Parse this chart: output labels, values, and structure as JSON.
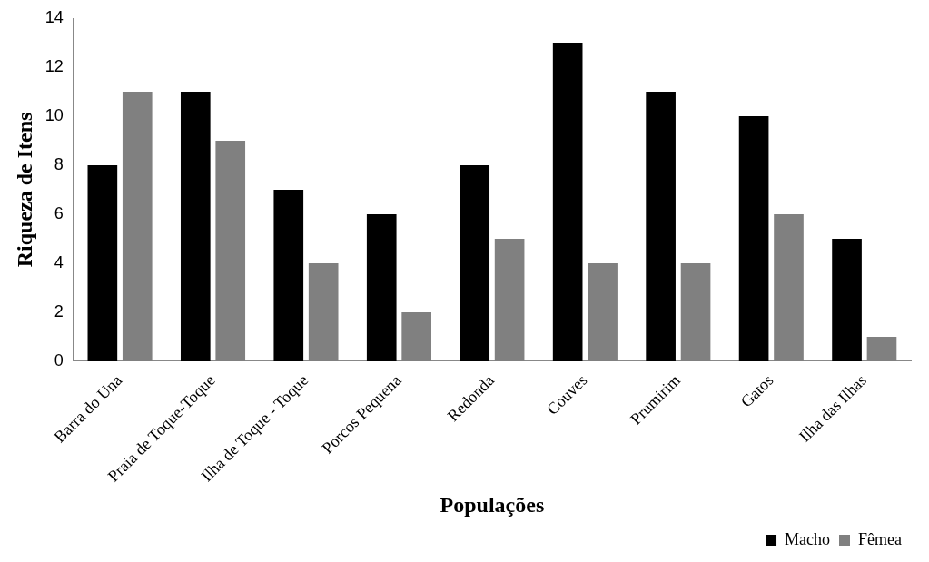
{
  "chart_data": {
    "type": "bar",
    "xlabel": "Populações",
    "ylabel": "Riqueza de Itens",
    "categories": [
      "Barra do Una",
      "Praia de Toque-Toque",
      "Ilha de Toque - Toque",
      "Porcos Pequena",
      "Redonda",
      "Couves",
      "Prumirim",
      "Gatos",
      "Ilha das Ilhas"
    ],
    "series": [
      {
        "name": "Macho",
        "color": "#000000",
        "values": [
          8,
          11,
          7,
          6,
          8,
          13,
          11,
          10,
          5
        ]
      },
      {
        "name": "Fêmea",
        "color": "#808080",
        "values": [
          11,
          9,
          4,
          2,
          5,
          4,
          4,
          6,
          1
        ]
      }
    ],
    "ylim": [
      0,
      14
    ],
    "yticks": [
      0,
      2,
      4,
      6,
      8,
      10,
      12,
      14
    ],
    "grid": false,
    "legend": "bottom right"
  }
}
